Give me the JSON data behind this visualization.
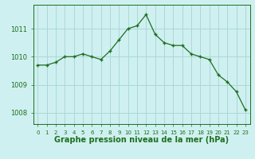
{
  "x": [
    0,
    1,
    2,
    3,
    4,
    5,
    6,
    7,
    8,
    9,
    10,
    11,
    12,
    13,
    14,
    15,
    16,
    17,
    18,
    19,
    20,
    21,
    22,
    23
  ],
  "y": [
    1009.7,
    1009.7,
    1009.8,
    1010.0,
    1010.0,
    1010.1,
    1010.0,
    1009.9,
    1010.2,
    1010.6,
    1011.0,
    1011.1,
    1011.5,
    1010.8,
    1010.5,
    1010.4,
    1010.4,
    1010.1,
    1010.0,
    1009.9,
    1009.35,
    1009.1,
    1008.75,
    1008.1
  ],
  "line_color": "#1e6e1e",
  "marker_color": "#1e6e1e",
  "bg_color": "#cff0f0",
  "grid_color": "#aad8d8",
  "xlabel": "Graphe pression niveau de la mer (hPa)",
  "xlabel_color": "#1e6e1e",
  "tick_color": "#1e6e1e",
  "yticks": [
    1008,
    1009,
    1010,
    1011
  ],
  "ylim": [
    1007.6,
    1011.85
  ],
  "xlim": [
    -0.5,
    23.5
  ],
  "xtick_labels": [
    "0",
    "1",
    "2",
    "3",
    "4",
    "5",
    "6",
    "7",
    "8",
    "9",
    "10",
    "11",
    "12",
    "13",
    "14",
    "15",
    "16",
    "17",
    "18",
    "19",
    "20",
    "21",
    "22",
    "23"
  ],
  "xlabel_fontsize": 7,
  "ytick_fontsize": 6,
  "xtick_fontsize": 5
}
